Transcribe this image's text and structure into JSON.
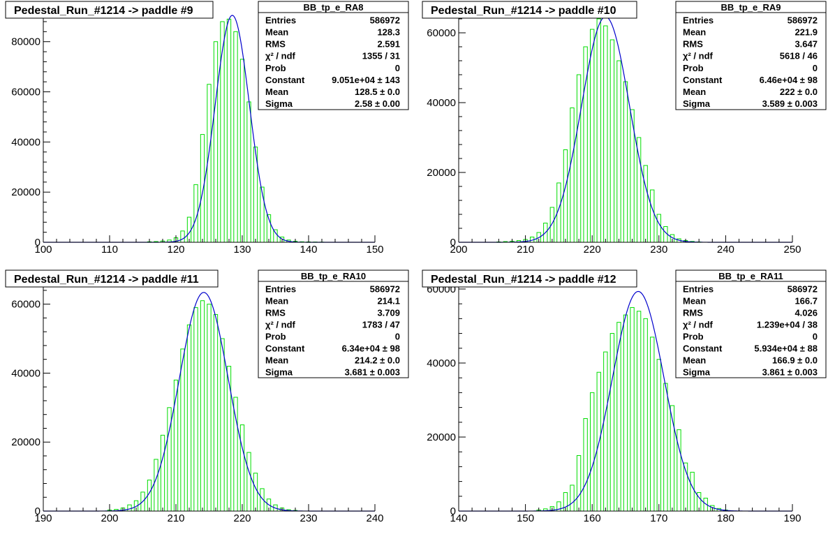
{
  "colors": {
    "background": "#ffffff",
    "histogram": "#00dd00",
    "fit": "#0000cc",
    "axis": "#000000",
    "text": "#000000"
  },
  "chart_data": [
    {
      "type": "bar",
      "title": "Pedestal_Run_#1214 -> paddle #9",
      "xlim": [
        100,
        150
      ],
      "ylim": [
        0,
        90500
      ],
      "xticks": [
        "100",
        "110",
        "120",
        "130",
        "140",
        "150"
      ],
      "yticks": [
        "0",
        "20000",
        "40000",
        "60000",
        "80000"
      ],
      "stats": {
        "name": "BB_tp_e_RA8",
        "rows": [
          {
            "label": "Entries",
            "value": "586972"
          },
          {
            "label": "Mean",
            "value": "128.3"
          },
          {
            "label": "RMS",
            "value": "2.591"
          },
          {
            "label": "χ² / ndf",
            "value": "1355 / 31"
          },
          {
            "label": "Prob",
            "value": "0"
          },
          {
            "label": "Constant",
            "value": "9.051e+04 ± 143"
          },
          {
            "label": "Mean",
            "value": "128.5 ± 0.0"
          },
          {
            "label": "Sigma",
            "value": "2.58 ± 0.00"
          }
        ]
      },
      "fit": {
        "constant": 90510,
        "mean": 128.5,
        "sigma": 2.58
      },
      "x": [
        116,
        117,
        118,
        119,
        120,
        121,
        122,
        123,
        124,
        125,
        126,
        127,
        128,
        129,
        130,
        131,
        132,
        133,
        134,
        135,
        136,
        137,
        138,
        139,
        140,
        141,
        142
      ],
      "values": [
        200,
        300,
        500,
        900,
        1800,
        4500,
        10000,
        23000,
        43000,
        63000,
        80000,
        88000,
        89000,
        84000,
        73000,
        56000,
        38000,
        22000,
        11000,
        5000,
        2100,
        900,
        400,
        200,
        150,
        100,
        60
      ]
    },
    {
      "type": "bar",
      "title": "Pedestal_Run_#1214 -> paddle #10",
      "xlim": [
        200,
        250
      ],
      "ylim": [
        0,
        65000
      ],
      "xticks": [
        "200",
        "210",
        "220",
        "230",
        "240",
        "250"
      ],
      "yticks": [
        "0",
        "20000",
        "40000",
        "60000"
      ],
      "stats": {
        "name": "BB_tp_e_RA9",
        "rows": [
          {
            "label": "Entries",
            "value": "586972"
          },
          {
            "label": "Mean",
            "value": "221.9"
          },
          {
            "label": "RMS",
            "value": "3.647"
          },
          {
            "label": "χ² / ndf",
            "value": "5618 / 46"
          },
          {
            "label": "Prob",
            "value": "0"
          },
          {
            "label": "Constant",
            "value": "6.46e+04 ± 98"
          },
          {
            "label": "Mean",
            "value": "222 ± 0.0"
          },
          {
            "label": "Sigma",
            "value": "3.589 ± 0.003"
          }
        ]
      },
      "fit": {
        "constant": 64600,
        "mean": 222.0,
        "sigma": 3.589
      },
      "x": [
        206,
        207,
        208,
        209,
        210,
        211,
        212,
        213,
        214,
        215,
        216,
        217,
        218,
        219,
        220,
        221,
        222,
        223,
        224,
        225,
        226,
        227,
        228,
        229,
        230,
        231,
        232,
        233,
        234,
        235,
        236
      ],
      "values": [
        100,
        200,
        300,
        500,
        800,
        1500,
        2800,
        5500,
        10000,
        17000,
        26500,
        38500,
        48000,
        56000,
        61000,
        64000,
        62000,
        58000,
        52000,
        46000,
        38000,
        30000,
        22000,
        15000,
        8000,
        4500,
        2200,
        1000,
        500,
        250,
        100
      ]
    },
    {
      "type": "bar",
      "title": "Pedestal_Run_#1214 -> paddle #11",
      "xlim": [
        190,
        240
      ],
      "ylim": [
        0,
        66000
      ],
      "xticks": [
        "190",
        "200",
        "210",
        "220",
        "230",
        "240"
      ],
      "yticks": [
        "0",
        "20000",
        "40000",
        "60000"
      ],
      "stats": {
        "name": "BB_tp_e_RA10",
        "rows": [
          {
            "label": "Entries",
            "value": "586972"
          },
          {
            "label": "Mean",
            "value": "214.1"
          },
          {
            "label": "RMS",
            "value": "3.709"
          },
          {
            "label": "χ² / ndf",
            "value": "1783 / 47"
          },
          {
            "label": "Prob",
            "value": "0"
          },
          {
            "label": "Constant",
            "value": "6.34e+04 ± 98"
          },
          {
            "label": "Mean",
            "value": "214.2 ± 0.0"
          },
          {
            "label": "Sigma",
            "value": "3.681 ± 0.003"
          }
        ]
      },
      "fit": {
        "constant": 63400,
        "mean": 214.2,
        "sigma": 3.681
      },
      "x": [
        200,
        201,
        202,
        203,
        204,
        205,
        206,
        207,
        208,
        209,
        210,
        211,
        212,
        213,
        214,
        215,
        216,
        217,
        218,
        219,
        220,
        221,
        222,
        223,
        224,
        225,
        226,
        227,
        228
      ],
      "values": [
        300,
        500,
        900,
        1800,
        3000,
        5500,
        9000,
        15000,
        22000,
        30000,
        38000,
        47000,
        54000,
        59000,
        61000,
        60000,
        57000,
        50000,
        42000,
        33000,
        25000,
        17000,
        11000,
        6500,
        3500,
        1800,
        900,
        400,
        200
      ]
    },
    {
      "type": "bar",
      "title": "Pedestal_Run_#1214 -> paddle #12",
      "xlim": [
        140,
        190
      ],
      "ylim": [
        0,
        61500
      ],
      "xticks": [
        "140",
        "150",
        "160",
        "170",
        "180",
        "190"
      ],
      "yticks": [
        "0",
        "20000",
        "40000",
        "60000"
      ],
      "stats": {
        "name": "BB_tp_e_RA11",
        "rows": [
          {
            "label": "Entries",
            "value": "586972"
          },
          {
            "label": "Mean",
            "value": "166.7"
          },
          {
            "label": "RMS",
            "value": "4.026"
          },
          {
            "label": "χ² / ndf",
            "value": "1.239e+04 / 38"
          },
          {
            "label": "Prob",
            "value": "0"
          },
          {
            "label": "Constant",
            "value": "5.934e+04 ± 88"
          },
          {
            "label": "Mean",
            "value": "166.9 ± 0.0"
          },
          {
            "label": "Sigma",
            "value": "3.861 ± 0.003"
          }
        ]
      },
      "fit": {
        "constant": 59340,
        "mean": 166.9,
        "sigma": 3.861
      },
      "x": [
        152,
        153,
        154,
        155,
        156,
        157,
        158,
        159,
        160,
        161,
        162,
        163,
        164,
        165,
        166,
        167,
        168,
        169,
        170,
        171,
        172,
        173,
        174,
        175,
        176,
        177,
        178,
        179,
        180
      ],
      "values": [
        300,
        600,
        1200,
        2500,
        5000,
        7000,
        15000,
        25000,
        32000,
        37500,
        43000,
        48000,
        51000,
        53000,
        55000,
        54000,
        52000,
        47000,
        41000,
        34500,
        28500,
        22000,
        13000,
        10500,
        5000,
        3500,
        1500,
        700,
        300
      ]
    }
  ]
}
